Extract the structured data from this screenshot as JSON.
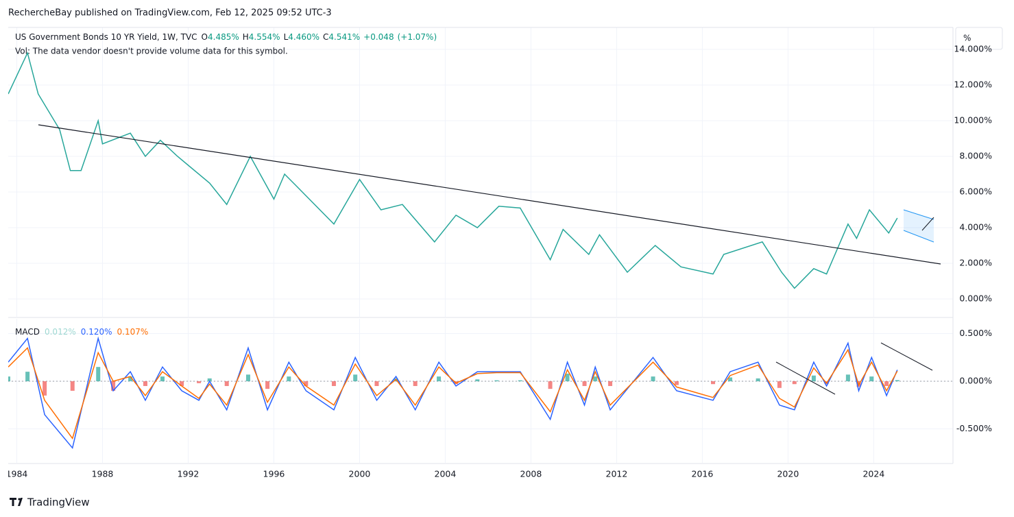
{
  "header": "RechercheBay published on TradingView.com, Feb 12, 2025 09:52 UTC-3",
  "footer": "TradingView",
  "chart_data": [
    {
      "type": "line",
      "title": "US Government Bonds 10 YR Yield, 1W, TVC",
      "ohlc": [
        {
          "key": "O",
          "value": 4.485,
          "label": "4.485%"
        },
        {
          "key": "H",
          "value": 4.554,
          "label": "4.554%"
        },
        {
          "key": "L",
          "value": 4.46,
          "label": "4.460%"
        },
        {
          "key": "C",
          "value": 4.541,
          "label": "4.541%"
        }
      ],
      "change": {
        "value": 0.048,
        "label": "+0.048"
      },
      "change_pct": {
        "value": 1.07,
        "label": "(+1.07%)"
      },
      "note": "Vol: The data vendor doesn't provide volume data for this symbol.",
      "unit": "%",
      "x": [
        1983.6,
        1984.5,
        1985.0,
        1986.0,
        1986.5,
        1987.0,
        1987.8,
        1988.0,
        1989.3,
        1990.0,
        1990.7,
        1991.5,
        1992.0,
        1993.0,
        1993.8,
        1994.9,
        1996.0,
        1996.5,
        1997.0,
        1998.8,
        2000.0,
        2001.0,
        2002.0,
        2003.5,
        2004.5,
        2005.5,
        2006.5,
        2007.5,
        2008.9,
        2009.5,
        2010.7,
        2011.2,
        2012.5,
        2013.8,
        2015.0,
        2016.5,
        2017.0,
        2018.8,
        2019.7,
        2020.3,
        2021.2,
        2021.8,
        2022.8,
        2023.2,
        2023.8,
        2024.7,
        2025.1
      ],
      "values": [
        11.5,
        13.8,
        11.5,
        9.5,
        7.2,
        7.2,
        10,
        8.7,
        9.3,
        8,
        8.9,
        8,
        7.5,
        6.5,
        5.3,
        8,
        5.6,
        7,
        6.4,
        4.2,
        6.7,
        5,
        5.3,
        3.2,
        4.7,
        4,
        5.2,
        5.1,
        2.2,
        3.9,
        2.5,
        3.6,
        1.5,
        3,
        1.8,
        1.4,
        2.5,
        3.2,
        1.5,
        0.6,
        1.7,
        1.4,
        4.2,
        3.4,
        5,
        3.7,
        4.54
      ],
      "color": "#26a69a",
      "xlim": [
        1983.6,
        2027.7
      ],
      "xticks": [
        1984,
        1988,
        1992,
        1996,
        2000,
        2004,
        2008,
        2012,
        2016,
        2020,
        2024
      ],
      "ylim": [
        -1,
        15.23
      ],
      "yticks": [
        {
          "value": 0,
          "label": "0.000%"
        },
        {
          "value": 2,
          "label": "2.000%"
        },
        {
          "value": 4,
          "label": "4.000%"
        },
        {
          "value": 6,
          "label": "6.000%"
        },
        {
          "value": 8,
          "label": "8.000%"
        },
        {
          "value": 10,
          "label": "10.000%"
        },
        {
          "value": 12,
          "label": "12.000%"
        },
        {
          "value": 14,
          "label": "14.000%"
        }
      ],
      "grid": true
    },
    {
      "type": "macd",
      "title": "MACD",
      "x": [
        1983.6,
        1984.5,
        1985.3,
        1986.6,
        1987.8,
        1988.5,
        1989.3,
        1990.0,
        1990.8,
        1991.7,
        1992.5,
        1993.0,
        1993.8,
        1994.8,
        1995.7,
        1996.7,
        1997.5,
        1998.8,
        1999.8,
        2000.8,
        2001.7,
        2002.6,
        2003.7,
        2004.5,
        2005.5,
        2006.4,
        2007.5,
        2008.9,
        2009.7,
        2010.5,
        2011.0,
        2011.7,
        2013.7,
        2014.8,
        2016.5,
        2017.3,
        2018.6,
        2019.6,
        2020.3,
        2021.2,
        2021.8,
        2022.8,
        2023.3,
        2023.9,
        2024.6,
        2025.1
      ],
      "series": [
        {
          "kind": "histogram",
          "color": "#26a69a",
          "negative_color": "#ef5350",
          "legend_color": "#9fd8d2",
          "last": {
            "value": 0.012,
            "label": "0.012%"
          },
          "values": [
            0.05,
            0.1,
            -0.15,
            -0.1,
            0.15,
            -0.1,
            0.05,
            -0.05,
            0.05,
            -0.05,
            -0.02,
            0.03,
            -0.05,
            0.07,
            -0.08,
            0.05,
            -0.05,
            -0.05,
            0.07,
            -0.05,
            0.03,
            -0.05,
            0.05,
            -0.03,
            0.02,
            0.01,
            0.01,
            -0.08,
            0.08,
            -0.05,
            0.05,
            -0.05,
            0.05,
            -0.04,
            -0.03,
            0.04,
            0.03,
            -0.07,
            -0.03,
            0.06,
            -0.03,
            0.07,
            -0.06,
            0.05,
            -0.05,
            0.012
          ]
        },
        {
          "kind": "line",
          "color": "#2962ff",
          "last": {
            "value": 0.12,
            "label": "0.120%"
          },
          "values": [
            0.2,
            0.45,
            -0.35,
            -0.7,
            0.45,
            -0.1,
            0.1,
            -0.2,
            0.15,
            -0.1,
            -0.2,
            0.0,
            -0.3,
            0.35,
            -0.3,
            0.2,
            -0.1,
            -0.3,
            0.25,
            -0.2,
            0.05,
            -0.3,
            0.2,
            -0.05,
            0.1,
            0.1,
            0.1,
            -0.4,
            0.2,
            -0.25,
            0.15,
            -0.3,
            0.25,
            -0.1,
            -0.2,
            0.1,
            0.2,
            -0.25,
            -0.3,
            0.2,
            -0.05,
            0.4,
            -0.1,
            0.25,
            -0.15,
            0.12
          ]
        },
        {
          "kind": "line",
          "color": "#ff6d00",
          "last": {
            "value": 0.107,
            "label": "0.107%"
          },
          "values": [
            0.15,
            0.35,
            -0.2,
            -0.6,
            0.3,
            0.0,
            0.05,
            -0.15,
            0.1,
            -0.05,
            -0.18,
            -0.03,
            -0.25,
            0.28,
            -0.22,
            0.15,
            -0.05,
            -0.25,
            0.18,
            -0.15,
            0.02,
            -0.25,
            0.15,
            -0.02,
            0.08,
            0.09,
            0.09,
            -0.32,
            0.12,
            -0.2,
            0.1,
            -0.25,
            0.2,
            -0.06,
            -0.17,
            0.06,
            0.17,
            -0.18,
            -0.27,
            0.14,
            -0.02,
            0.33,
            -0.04,
            0.2,
            -0.1,
            0.107
          ]
        }
      ],
      "xlim": [
        1983.6,
        2027.7
      ],
      "ylim": [
        -0.856,
        0.655
      ],
      "yticks": [
        {
          "value": -0.5,
          "label": "-0.500%"
        },
        {
          "value": 0,
          "label": "0.000%"
        },
        {
          "value": 0.5,
          "label": "0.500%"
        }
      ],
      "grid": true
    }
  ]
}
